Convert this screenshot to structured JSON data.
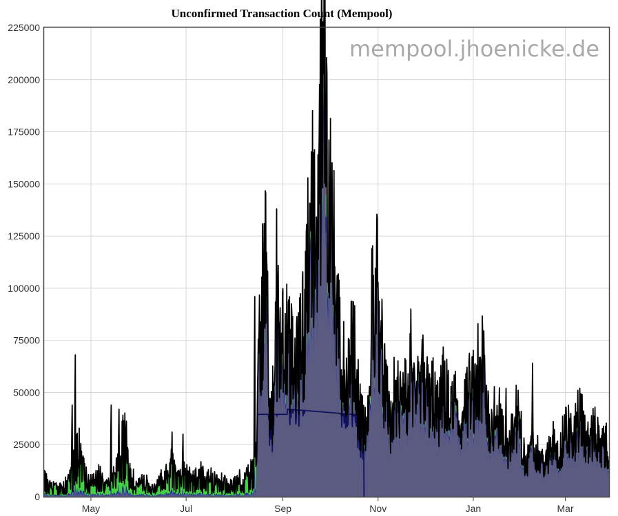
{
  "chart_data": {
    "type": "area",
    "title": "Unconfirmed Transaction Count (Mempool)",
    "watermark": "mempool.jhoenicke.de",
    "xlabel": "",
    "ylabel": "",
    "ylim": [
      0,
      225000
    ],
    "y_ticks": [
      "0",
      "25000",
      "50000",
      "75000",
      "100000",
      "125000",
      "150000",
      "175000",
      "200000",
      "225000"
    ],
    "x_ticks": [
      {
        "label": "May",
        "day": 30
      },
      {
        "label": "Jul",
        "day": 91
      },
      {
        "label": "Sep",
        "day": 153
      },
      {
        "label": "Nov",
        "day": 214
      },
      {
        "label": "Jan",
        "day": 275
      },
      {
        "label": "Mar",
        "day": 334
      }
    ],
    "x_range_days": [
      0,
      362
    ],
    "grid": true,
    "legend": "none",
    "stack_colors": {
      "base": "#5b5b82",
      "band_blue": "#4a4aa8",
      "band_navy": "#1c1c8a",
      "band_green": "#44d244",
      "band_red": "#b3403a",
      "total_line": "#000000",
      "base_line": "#101060"
    },
    "series": [
      {
        "name": "",
        "keypoints": [
          [
            0,
            10000
          ],
          [
            3,
            6000
          ],
          [
            6,
            5500
          ],
          [
            9,
            4000
          ],
          [
            12,
            6000
          ],
          [
            15,
            8000
          ],
          [
            18,
            12000
          ],
          [
            20,
            20000
          ],
          [
            22,
            25000
          ],
          [
            25,
            15000
          ],
          [
            28,
            9000
          ],
          [
            32,
            8000
          ],
          [
            36,
            12000
          ],
          [
            40,
            6000
          ],
          [
            45,
            11000
          ],
          [
            48,
            18000
          ],
          [
            50,
            28000
          ],
          [
            52,
            34000
          ],
          [
            55,
            12000
          ],
          [
            60,
            7000
          ],
          [
            65,
            8000
          ],
          [
            70,
            5000
          ],
          [
            75,
            9000
          ],
          [
            80,
            12000
          ],
          [
            82,
            18000
          ],
          [
            85,
            10000
          ],
          [
            90,
            12000
          ],
          [
            95,
            9000
          ],
          [
            100,
            12000
          ],
          [
            105,
            10000
          ],
          [
            110,
            9000
          ],
          [
            115,
            8000
          ],
          [
            120,
            6000
          ],
          [
            125,
            9000
          ],
          [
            130,
            10000
          ],
          [
            134,
            14000
          ],
          [
            136,
            20000
          ],
          [
            137,
            60000
          ],
          [
            138,
            80000
          ],
          [
            140,
            95000
          ],
          [
            141,
            120000
          ],
          [
            143,
            85000
          ],
          [
            145,
            35000
          ],
          [
            147,
            50000
          ],
          [
            149,
            75000
          ],
          [
            151,
            85000
          ],
          [
            153,
            80000
          ],
          [
            155,
            72000
          ],
          [
            157,
            70000
          ],
          [
            160,
            60000
          ],
          [
            163,
            65000
          ],
          [
            165,
            75000
          ],
          [
            167,
            85000
          ],
          [
            168,
            105000
          ],
          [
            170,
            125000
          ],
          [
            172,
            130000
          ],
          [
            174,
            125000
          ],
          [
            176,
            140000
          ],
          [
            177,
            160000
          ],
          [
            178,
            185000
          ],
          [
            179,
            200000
          ],
          [
            180,
            185000
          ],
          [
            181,
            178000
          ],
          [
            182,
            170000
          ],
          [
            184,
            140000
          ],
          [
            186,
            110000
          ],
          [
            188,
            80000
          ],
          [
            190,
            70000
          ],
          [
            192,
            60000
          ],
          [
            194,
            45000
          ],
          [
            196,
            60000
          ],
          [
            198,
            75000
          ],
          [
            200,
            55000
          ],
          [
            202,
            40000
          ],
          [
            205,
            30000
          ],
          [
            208,
            35000
          ],
          [
            210,
            80000
          ],
          [
            212,
            105000
          ],
          [
            214,
            98000
          ],
          [
            216,
            70000
          ],
          [
            218,
            55000
          ],
          [
            220,
            45000
          ],
          [
            222,
            35000
          ],
          [
            225,
            50000
          ],
          [
            228,
            42000
          ],
          [
            230,
            60000
          ],
          [
            232,
            45000
          ],
          [
            235,
            60000
          ],
          [
            238,
            40000
          ],
          [
            240,
            55000
          ],
          [
            243,
            62000
          ],
          [
            246,
            45000
          ],
          [
            250,
            48000
          ],
          [
            253,
            38000
          ],
          [
            256,
            52000
          ],
          [
            260,
            40000
          ],
          [
            264,
            45000
          ],
          [
            268,
            35000
          ],
          [
            272,
            48000
          ],
          [
            275,
            50000
          ],
          [
            278,
            42000
          ],
          [
            281,
            62000
          ],
          [
            284,
            38000
          ],
          [
            287,
            35000
          ],
          [
            290,
            45000
          ],
          [
            293,
            30000
          ],
          [
            297,
            22000
          ],
          [
            300,
            35000
          ],
          [
            303,
            38000
          ],
          [
            306,
            28000
          ],
          [
            309,
            12000
          ],
          [
            312,
            30000
          ],
          [
            315,
            22000
          ],
          [
            318,
            18000
          ],
          [
            321,
            15000
          ],
          [
            324,
            22000
          ],
          [
            327,
            28000
          ],
          [
            330,
            18000
          ],
          [
            333,
            30000
          ],
          [
            336,
            32000
          ],
          [
            339,
            25000
          ],
          [
            342,
            38000
          ],
          [
            345,
            35000
          ],
          [
            348,
            25000
          ],
          [
            351,
            30000
          ],
          [
            354,
            28000
          ],
          [
            357,
            22000
          ],
          [
            360,
            25000
          ],
          [
            362,
            20000
          ]
        ],
        "spikes": [
          [
            20,
            68000
          ],
          [
            18,
            44000
          ],
          [
            43,
            44000
          ],
          [
            48,
            42000
          ],
          [
            82,
            31000
          ],
          [
            89,
            30000
          ],
          [
            135,
            96000
          ],
          [
            141,
            131000
          ],
          [
            149,
            138000
          ],
          [
            168,
            127000
          ],
          [
            176,
            160000
          ],
          [
            179,
            203000
          ],
          [
            184,
            147000
          ],
          [
            192,
            84000
          ],
          [
            210,
            119000
          ],
          [
            235,
            90000
          ],
          [
            248,
            57000
          ],
          [
            256,
            56000
          ],
          [
            278,
            83000
          ],
          [
            296,
            52000
          ],
          [
            313,
            64000
          ],
          [
            342,
            51000
          ],
          [
            353,
            43000
          ]
        ]
      }
    ]
  }
}
